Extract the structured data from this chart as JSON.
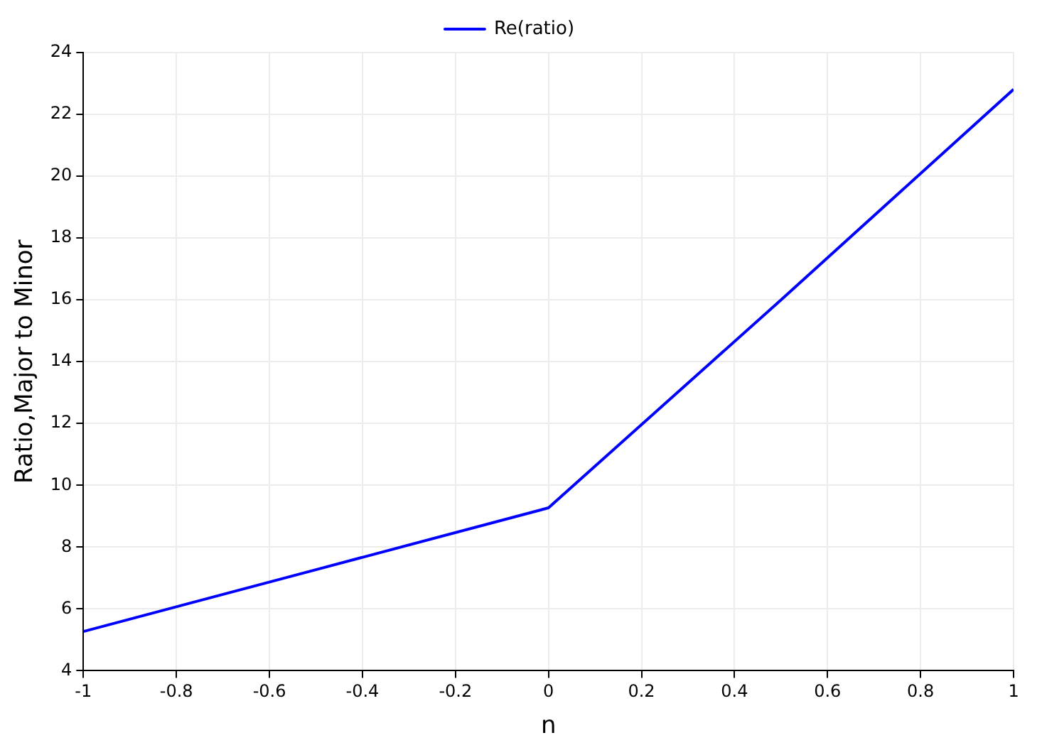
{
  "chart_data": {
    "type": "line",
    "xlabel": "n",
    "ylabel": "Ratio,Major to Minor",
    "x": [
      -1,
      -0.5,
      0,
      0.5,
      1
    ],
    "series": [
      {
        "name": "Re(ratio)",
        "color": "#0000ff",
        "values": [
          5.27,
          7.27,
          9.27,
          16.0,
          22.81
        ]
      }
    ],
    "xlim": [
      -1,
      1
    ],
    "xticks": [
      -1,
      -0.8,
      -0.6,
      -0.4,
      -0.2,
      0,
      0.2,
      0.4,
      0.6,
      0.8,
      1
    ],
    "ylim": [
      4,
      24
    ],
    "yticks": [
      4,
      6,
      8,
      10,
      12,
      14,
      16,
      18,
      20,
      22,
      24
    ],
    "grid": true,
    "legend": "top",
    "marker": "none",
    "line_style": "solid"
  }
}
